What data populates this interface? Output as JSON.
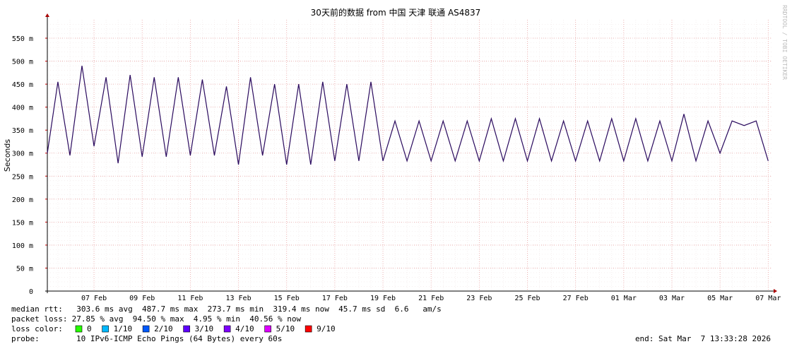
{
  "chart_data": {
    "type": "line",
    "title": "30天前的数据 from 中国 天津 联通 AS4837",
    "y_label": "Seconds",
    "side_text": "RRDTOOL / TOBI OETIKER",
    "ylim": [
      0,
      0.59
    ],
    "yticks": [
      0,
      {
        "value": 0.05,
        "label": "50 m"
      },
      {
        "value": 0.1,
        "label": "100 m"
      },
      {
        "value": 0.15,
        "label": "150 m"
      },
      {
        "value": 0.2,
        "label": "200 m"
      },
      {
        "value": 0.25,
        "label": "250 m"
      },
      {
        "value": 0.3,
        "label": "300 m"
      },
      {
        "value": 0.35,
        "label": "350 m"
      },
      {
        "value": 0.4,
        "label": "400 m"
      },
      {
        "value": 0.45,
        "label": "450 m"
      },
      {
        "value": 0.5,
        "label": "500 m"
      },
      {
        "value": 0.55,
        "label": "550 m"
      }
    ],
    "grid": true,
    "categories": [
      null,
      null,
      null,
      null,
      "07 Feb",
      null,
      null,
      null,
      "09 Feb",
      null,
      null,
      null,
      "11 Feb",
      null,
      null,
      null,
      "13 Feb",
      null,
      null,
      null,
      "15 Feb",
      null,
      null,
      null,
      "17 Feb",
      null,
      null,
      null,
      "19 Feb",
      null,
      null,
      null,
      "21 Feb",
      null,
      null,
      null,
      "23 Feb",
      null,
      null,
      null,
      "25 Feb",
      null,
      null,
      null,
      "27 Feb",
      null,
      null,
      null,
      "01 Mar",
      null,
      null,
      null,
      "03 Mar",
      null,
      null,
      null,
      "05 Mar",
      null,
      null,
      null,
      "07 Mar"
    ],
    "series": [
      {
        "name": "median rtt:",
        "color": "#2a0a5e",
        "values": [
          0.3,
          0.455,
          0.295,
          0.49,
          0.315,
          0.465,
          0.278,
          0.47,
          0.292,
          0.465,
          0.292,
          0.465,
          0.295,
          0.46,
          0.295,
          0.445,
          0.275,
          0.465,
          0.295,
          0.45,
          0.275,
          0.45,
          0.275,
          0.455,
          0.283,
          0.45,
          0.283,
          0.455,
          0.283,
          0.37,
          0.283,
          0.37,
          0.283,
          0.37,
          0.283,
          0.37,
          0.283,
          0.375,
          0.283,
          0.375,
          0.283,
          0.375,
          0.283,
          0.37,
          0.283,
          0.37,
          0.283,
          0.375,
          0.283,
          0.375,
          0.283,
          0.37,
          0.283,
          0.385,
          0.283,
          0.37,
          0.3,
          0.37,
          0.36,
          0.37,
          0.283
        ]
      }
    ],
    "stats": {
      "median_rtt": "  303.6 ms avg  487.7 ms max  273.7 ms min  319.4 ms now  45.7 ms sd  6.6   am/s",
      "packet_loss_label": "packet loss:",
      "packet_loss": " 27.85 % avg  94.50 % max  4.95 % min  40.56 % now",
      "loss_color_label": "loss color:",
      "probe_label": "probe:",
      "probe": "10 IPv6-ICMP Echo Pings (64 Bytes) every 60s",
      "end": "end: Sat Mar  7 13:33:28 2026"
    },
    "loss_colors": [
      {
        "label": "0",
        "color": "#26ff00"
      },
      {
        "label": "1/10",
        "color": "#00b8ff"
      },
      {
        "label": "2/10",
        "color": "#0059ff"
      },
      {
        "label": "3/10",
        "color": "#5e00ff"
      },
      {
        "label": "4/10",
        "color": "#7e00ff"
      },
      {
        "label": "5/10",
        "color": "#dd00ff"
      },
      {
        "label": "9/10",
        "color": "#ff0000"
      }
    ]
  }
}
